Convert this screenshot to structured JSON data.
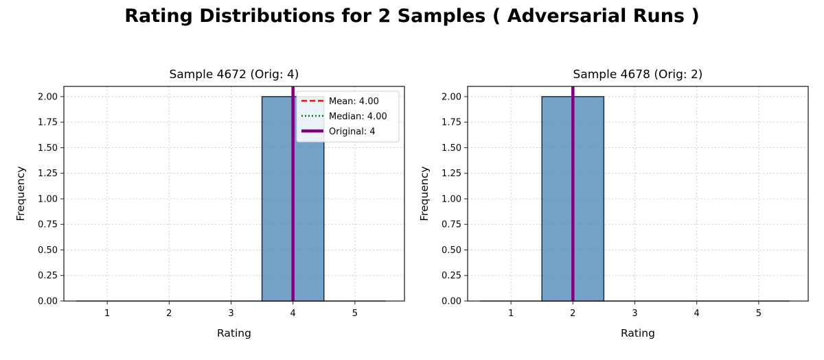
{
  "figure": {
    "title": "Rating Distributions for 2 Samples ( Adversarial Runs )"
  },
  "chart_data": [
    {
      "type": "bar",
      "title": "Sample 4672 (Orig: 4)",
      "xlabel": "Rating",
      "ylabel": "Frequency",
      "categories": [
        1,
        2,
        3,
        4,
        5
      ],
      "values": [
        0,
        0,
        0,
        2,
        0
      ],
      "xlim": [
        0.3,
        5.8
      ],
      "ylim": [
        0,
        2.1
      ],
      "yticks": [
        "0.00",
        "0.25",
        "0.50",
        "0.75",
        "1.00",
        "1.25",
        "1.50",
        "1.75",
        "2.00"
      ],
      "xticks": [
        "1",
        "2",
        "3",
        "4",
        "5"
      ],
      "grid": true,
      "mean": 4.0,
      "median": 4.0,
      "original": 4,
      "legend": {
        "placement": "upper-right",
        "entries": [
          "Mean: 4.00",
          "Median: 4.00",
          "Original: 4"
        ]
      }
    },
    {
      "type": "bar",
      "title": "Sample 4678 (Orig: 2)",
      "xlabel": "Rating",
      "ylabel": "Frequency",
      "categories": [
        1,
        2,
        3,
        4,
        5
      ],
      "values": [
        0,
        2,
        0,
        0,
        0
      ],
      "xlim": [
        0.3,
        5.8
      ],
      "ylim": [
        0,
        2.1
      ],
      "yticks": [
        "0.00",
        "0.25",
        "0.50",
        "0.75",
        "1.00",
        "1.25",
        "1.50",
        "1.75",
        "2.00"
      ],
      "xticks": [
        "1",
        "2",
        "3",
        "4",
        "5"
      ],
      "grid": true,
      "original": 2
    }
  ],
  "colors": {
    "bar_fill": "#4682b4",
    "bar_edge": "#1c2a3a",
    "mean_line": "#ff0000",
    "median_line": "#008000",
    "original_line": "#800080",
    "grid": "#cccccc"
  }
}
